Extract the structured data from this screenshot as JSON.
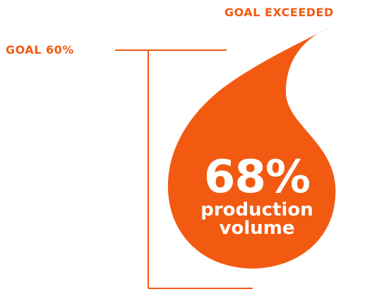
{
  "chart_data": {
    "type": "droplet-gauge",
    "value_label": "68%",
    "value": 68,
    "goal_label": "GOAL 60%",
    "goal": 60,
    "status_label": "GOAL EXCEEDED",
    "description_lines": [
      "production",
      "volume"
    ]
  },
  "colors": {
    "accent": "#f25a12",
    "drop_fill": "#f25a12",
    "text_on_drop": "#ffffff"
  }
}
